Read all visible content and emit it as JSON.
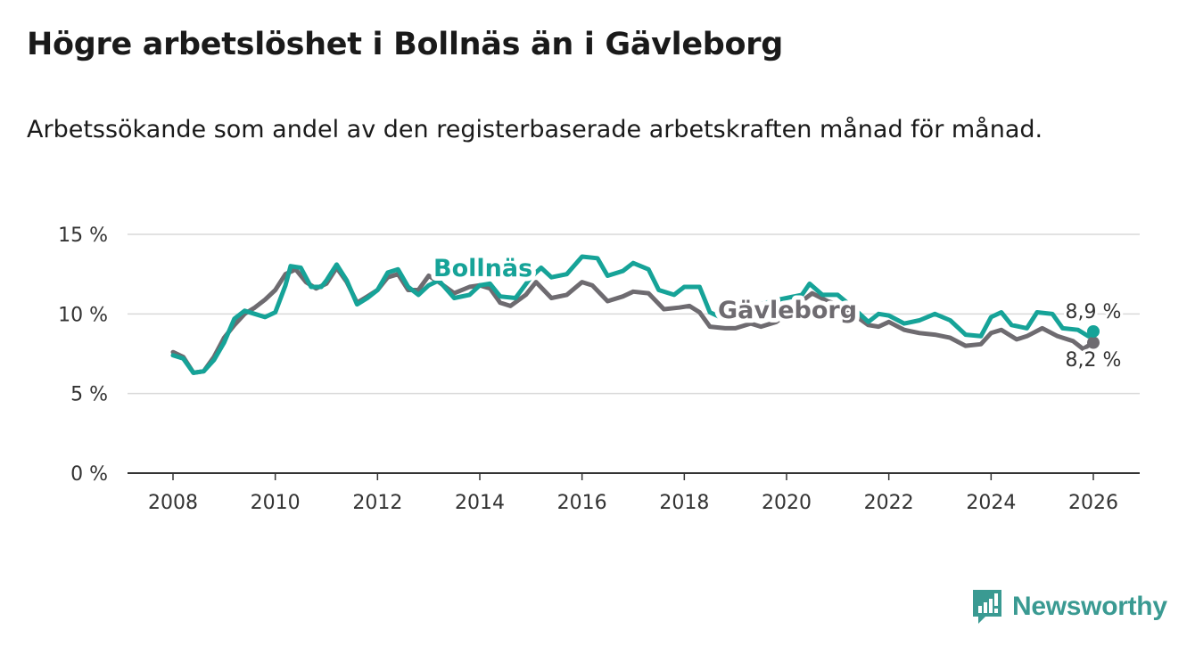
{
  "title": "Högre arbetslöshet i Bollnäs än i Gävleborg",
  "subtitle": "Arbetssökande som andel av den registerbaserade arbetskraften månad för månad.",
  "logo": {
    "text": "Newsworthy",
    "icon": "bar-chart-icon"
  },
  "chart_data": {
    "type": "line",
    "xlabel": "",
    "ylabel": "",
    "xlim": [
      2008,
      2026
    ],
    "ylim": [
      0,
      15
    ],
    "x_ticks": [
      2008,
      2010,
      2012,
      2014,
      2016,
      2018,
      2020,
      2022,
      2024,
      2026
    ],
    "x_tick_labels": [
      "2008",
      "2010",
      "2012",
      "2014",
      "2016",
      "2018",
      "2020",
      "2022",
      "2024",
      "2026"
    ],
    "y_ticks": [
      0,
      5,
      10,
      15
    ],
    "y_tick_labels": [
      "0 %",
      "5 %",
      "10 %",
      "15 %"
    ],
    "grid": true,
    "series": [
      {
        "name": "Gävleborg",
        "color": "#6e6b70",
        "end_label": "8,2 %",
        "x": [
          2008.0,
          2008.2,
          2008.4,
          2008.6,
          2008.8,
          2009.0,
          2009.2,
          2009.4,
          2009.6,
          2009.8,
          2010.0,
          2010.2,
          2010.4,
          2010.6,
          2010.8,
          2011.0,
          2011.2,
          2011.4,
          2011.6,
          2011.8,
          2012.0,
          2012.2,
          2012.4,
          2012.6,
          2012.8,
          2013.0,
          2013.2,
          2013.5,
          2013.8,
          2014.0,
          2014.2,
          2014.4,
          2014.6,
          2014.9,
          2015.1,
          2015.4,
          2015.7,
          2016.0,
          2016.2,
          2016.5,
          2016.8,
          2017.0,
          2017.3,
          2017.6,
          2017.9,
          2018.1,
          2018.3,
          2018.5,
          2018.8,
          2019.0,
          2019.3,
          2019.5,
          2019.8,
          2020.0,
          2020.3,
          2020.5,
          2020.8,
          2021.0,
          2021.3,
          2021.6,
          2021.8,
          2022.0,
          2022.3,
          2022.6,
          2022.9,
          2023.2,
          2023.5,
          2023.8,
          2024.0,
          2024.2,
          2024.5,
          2024.7,
          2025.0,
          2025.3,
          2025.6,
          2025.8,
          2026.0
        ],
        "y": [
          7.6,
          7.3,
          6.3,
          6.4,
          7.3,
          8.5,
          9.3,
          10.0,
          10.4,
          10.9,
          11.5,
          12.5,
          12.8,
          12.0,
          11.6,
          11.9,
          12.9,
          12.0,
          10.7,
          11.1,
          11.5,
          12.3,
          12.5,
          11.5,
          11.5,
          12.4,
          12.0,
          11.3,
          11.7,
          11.8,
          11.6,
          10.7,
          10.5,
          11.2,
          12.0,
          11.0,
          11.2,
          12.0,
          11.8,
          10.8,
          11.1,
          11.4,
          11.3,
          10.3,
          10.4,
          10.5,
          10.1,
          9.2,
          9.1,
          9.1,
          9.4,
          9.2,
          9.5,
          10.0,
          10.8,
          11.3,
          10.8,
          10.6,
          10.0,
          9.3,
          9.2,
          9.5,
          9.0,
          8.8,
          8.7,
          8.5,
          8.0,
          8.1,
          8.8,
          9.0,
          8.4,
          8.6,
          9.1,
          8.6,
          8.3,
          7.8,
          8.2
        ]
      },
      {
        "name": "Bollnäs",
        "color": "#16a398",
        "end_label": "8,9 %",
        "x": [
          2008.0,
          2008.2,
          2008.4,
          2008.6,
          2008.8,
          2009.0,
          2009.2,
          2009.4,
          2009.6,
          2009.8,
          2010.0,
          2010.2,
          2010.3,
          2010.5,
          2010.7,
          2010.9,
          2011.0,
          2011.1,
          2011.2,
          2011.4,
          2011.6,
          2011.8,
          2012.0,
          2012.2,
          2012.4,
          2012.6,
          2012.8,
          2013.0,
          2013.2,
          2013.5,
          2013.8,
          2014.0,
          2014.2,
          2014.4,
          2014.7,
          2015.0,
          2015.2,
          2015.4,
          2015.7,
          2016.0,
          2016.3,
          2016.5,
          2016.8,
          2017.0,
          2017.3,
          2017.5,
          2017.8,
          2018.0,
          2018.3,
          2018.5,
          2018.7,
          2019.0,
          2019.4,
          2019.7,
          2020.0,
          2020.3,
          2020.45,
          2020.7,
          2021.0,
          2021.3,
          2021.6,
          2021.8,
          2022.0,
          2022.3,
          2022.6,
          2022.9,
          2023.2,
          2023.5,
          2023.8,
          2024.0,
          2024.2,
          2024.4,
          2024.7,
          2024.9,
          2025.2,
          2025.4,
          2025.7,
          2025.9,
          2026.0
        ],
        "y": [
          7.4,
          7.2,
          6.3,
          6.4,
          7.1,
          8.2,
          9.7,
          10.2,
          10.0,
          9.8,
          10.1,
          11.8,
          13.0,
          12.9,
          11.7,
          11.7,
          12.1,
          12.6,
          13.1,
          12.1,
          10.6,
          11.0,
          11.5,
          12.6,
          12.8,
          11.7,
          11.2,
          11.8,
          12.1,
          11.0,
          11.2,
          11.8,
          11.9,
          11.1,
          11.0,
          12.3,
          12.9,
          12.3,
          12.5,
          13.6,
          13.5,
          12.4,
          12.7,
          13.2,
          12.8,
          11.5,
          11.2,
          11.7,
          11.7,
          10.1,
          9.8,
          10.2,
          10.5,
          10.8,
          11.0,
          11.2,
          11.9,
          11.2,
          11.2,
          10.4,
          9.5,
          10.0,
          9.9,
          9.4,
          9.6,
          10.0,
          9.6,
          8.7,
          8.6,
          9.8,
          10.1,
          9.3,
          9.1,
          10.1,
          10.0,
          9.1,
          9.0,
          8.6,
          8.9
        ]
      }
    ],
    "annotations": [
      {
        "text": "Bollnäs",
        "series": "Bollnäs"
      },
      {
        "text": "Gävleborg",
        "series": "Gävleborg"
      }
    ]
  }
}
